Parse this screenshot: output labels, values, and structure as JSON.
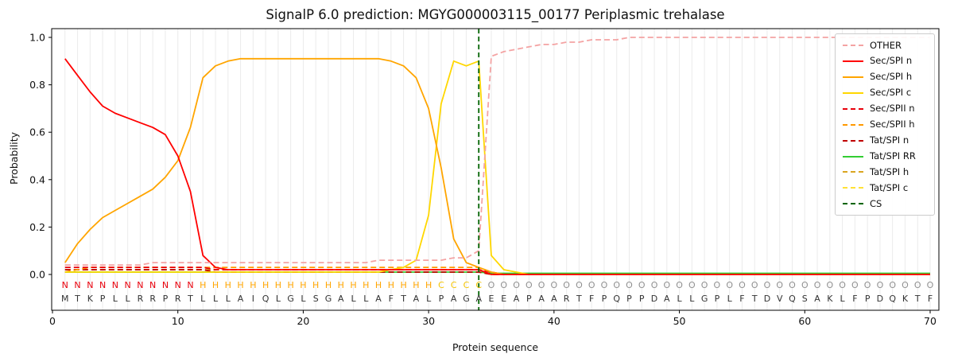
{
  "chart_data": {
    "type": "line",
    "title": "SignalP 6.0 prediction: MGYG000003115_00177 Periplasmic trehalase",
    "xlabel": "Protein sequence",
    "ylabel": "Probability",
    "xlim": [
      0,
      70
    ],
    "ylim": [
      0.0,
      1.0
    ],
    "x_ticks": [
      0,
      10,
      20,
      30,
      40,
      50,
      60,
      70
    ],
    "y_ticks": [
      "0.0",
      "0.2",
      "0.4",
      "0.6",
      "0.8",
      "1.0"
    ],
    "grid": "vertical-light-gray-per-residue",
    "legend_position": "upper right",
    "cs_position": 34,
    "cs_label": "CS",
    "cs_color": "#006400",
    "sequence": "MTKPLLRRPRTLLLAIQLGLSGALLAFTALPAGAEEAPAARTFPQPPDALLGPLFTDVQSAKLFPDQKTF",
    "regions": "NNNNNNNNNNNHHHHHHHHHHHHHHHHHHHCCCCOOOOOOOOOOOOOOOOOOOOOOOOOOOOOOOOOOOO",
    "region_colors": {
      "N": "#e8000b",
      "H": "#ffa500",
      "C": "#f5c400",
      "O": "#909090"
    },
    "sequence_color": "#333333",
    "series": [
      {
        "name": "OTHER",
        "color": "#f4a3a3",
        "dash": true,
        "values": [
          0.04,
          0.04,
          0.04,
          0.04,
          0.04,
          0.04,
          0.04,
          0.05,
          0.05,
          0.05,
          0.05,
          0.05,
          0.05,
          0.05,
          0.05,
          0.05,
          0.05,
          0.05,
          0.05,
          0.05,
          0.05,
          0.05,
          0.05,
          0.05,
          0.05,
          0.06,
          0.06,
          0.06,
          0.06,
          0.06,
          0.06,
          0.07,
          0.07,
          0.1,
          0.92,
          0.94,
          0.95,
          0.96,
          0.97,
          0.97,
          0.98,
          0.98,
          0.99,
          0.99,
          0.99,
          1.0,
          1.0,
          1.0,
          1.0,
          1.0,
          1.0,
          1.0,
          1.0,
          1.0,
          1.0,
          1.0,
          1.0,
          1.0,
          1.0,
          1.0,
          1.0,
          1.0,
          1.0,
          1.0,
          1.0,
          1.0,
          1.0,
          1.0,
          1.0,
          1.0
        ]
      },
      {
        "name": "Sec/SPI n",
        "color": "#ff0000",
        "dash": false,
        "values": [
          0.91,
          0.84,
          0.77,
          0.71,
          0.68,
          0.66,
          0.64,
          0.62,
          0.59,
          0.5,
          0.35,
          0.08,
          0.03,
          0.02,
          0.02,
          0.02,
          0.02,
          0.02,
          0.02,
          0.02,
          0.02,
          0.02,
          0.02,
          0.02,
          0.02,
          0.02,
          0.02,
          0.02,
          0.02,
          0.02,
          0.02,
          0.02,
          0.02,
          0.02,
          0,
          0,
          0,
          0,
          0,
          0,
          0,
          0,
          0,
          0,
          0,
          0,
          0,
          0,
          0,
          0,
          0,
          0,
          0,
          0,
          0,
          0,
          0,
          0,
          0,
          0,
          0,
          0,
          0,
          0,
          0,
          0,
          0,
          0,
          0,
          0
        ]
      },
      {
        "name": "Sec/SPI h",
        "color": "#ffa500",
        "dash": false,
        "values": [
          0.05,
          0.13,
          0.19,
          0.24,
          0.27,
          0.3,
          0.33,
          0.36,
          0.41,
          0.48,
          0.62,
          0.83,
          0.88,
          0.9,
          0.91,
          0.91,
          0.91,
          0.91,
          0.91,
          0.91,
          0.91,
          0.91,
          0.91,
          0.91,
          0.91,
          0.91,
          0.9,
          0.88,
          0.83,
          0.7,
          0.45,
          0.15,
          0.05,
          0.03,
          0.01,
          0,
          0,
          0,
          0,
          0,
          0,
          0,
          0,
          0,
          0,
          0,
          0,
          0,
          0,
          0,
          0,
          0,
          0,
          0,
          0,
          0,
          0,
          0,
          0,
          0,
          0,
          0,
          0,
          0,
          0,
          0,
          0,
          0,
          0,
          0
        ]
      },
      {
        "name": "Sec/SPI c",
        "color": "#ffd700",
        "dash": false,
        "values": [
          0.01,
          0.01,
          0.01,
          0.01,
          0.01,
          0.01,
          0.01,
          0.01,
          0.01,
          0.01,
          0.01,
          0.01,
          0.01,
          0.01,
          0.01,
          0.01,
          0.01,
          0.01,
          0.01,
          0.01,
          0.01,
          0.01,
          0.01,
          0.01,
          0.01,
          0.01,
          0.02,
          0.03,
          0.06,
          0.25,
          0.72,
          0.9,
          0.88,
          0.9,
          0.08,
          0.02,
          0.01,
          0,
          0,
          0,
          0,
          0,
          0,
          0,
          0,
          0,
          0,
          0,
          0,
          0,
          0,
          0,
          0,
          0,
          0,
          0,
          0,
          0,
          0,
          0,
          0,
          0,
          0,
          0,
          0,
          0,
          0,
          0,
          0,
          0
        ]
      },
      {
        "name": "Sec/SPII n",
        "color": "#e8000b",
        "dash": true,
        "values": [
          0.03,
          0.03,
          0.03,
          0.03,
          0.03,
          0.03,
          0.03,
          0.03,
          0.03,
          0.03,
          0.03,
          0.03,
          0.02,
          0.02,
          0.02,
          0.02,
          0.02,
          0.02,
          0.02,
          0.02,
          0.02,
          0.02,
          0.02,
          0.02,
          0.02,
          0.02,
          0.02,
          0.02,
          0.02,
          0.02,
          0.02,
          0.02,
          0.02,
          0.02,
          0.01,
          0,
          0,
          0,
          0,
          0,
          0,
          0,
          0,
          0,
          0,
          0,
          0,
          0,
          0,
          0,
          0,
          0,
          0,
          0,
          0,
          0,
          0,
          0,
          0,
          0,
          0,
          0,
          0,
          0,
          0,
          0,
          0,
          0,
          0,
          0
        ]
      },
      {
        "name": "Sec/SPII h",
        "color": "#ff9900",
        "dash": true,
        "values": [
          0.01,
          0.02,
          0.03,
          0.03,
          0.03,
          0.03,
          0.03,
          0.03,
          0.03,
          0.03,
          0.03,
          0.03,
          0.03,
          0.03,
          0.03,
          0.03,
          0.03,
          0.03,
          0.03,
          0.03,
          0.03,
          0.03,
          0.03,
          0.03,
          0.03,
          0.03,
          0.03,
          0.03,
          0.03,
          0.03,
          0.03,
          0.03,
          0.03,
          0.03,
          0.01,
          0,
          0,
          0,
          0,
          0,
          0,
          0,
          0,
          0,
          0,
          0,
          0,
          0,
          0,
          0,
          0,
          0,
          0,
          0,
          0,
          0,
          0,
          0,
          0,
          0,
          0,
          0,
          0,
          0,
          0,
          0,
          0,
          0,
          0,
          0
        ]
      },
      {
        "name": "Tat/SPI n",
        "color": "#c00000",
        "dash": true,
        "values": [
          0.02,
          0.02,
          0.02,
          0.02,
          0.02,
          0.02,
          0.02,
          0.02,
          0.02,
          0.02,
          0.02,
          0.02,
          0.01,
          0.01,
          0.01,
          0.01,
          0.01,
          0.01,
          0.01,
          0.01,
          0.01,
          0.01,
          0.01,
          0.01,
          0.01,
          0.01,
          0.01,
          0.01,
          0.01,
          0.01,
          0.01,
          0.01,
          0.01,
          0.01,
          0,
          0,
          0,
          0,
          0,
          0,
          0,
          0,
          0,
          0,
          0,
          0,
          0,
          0,
          0,
          0,
          0,
          0,
          0,
          0,
          0,
          0,
          0,
          0,
          0,
          0,
          0,
          0,
          0,
          0,
          0,
          0,
          0,
          0,
          0,
          0
        ]
      },
      {
        "name": "Tat/SPI RR",
        "color": "#32cd32",
        "dash": false,
        "values": [
          0.01,
          0.01,
          0.01,
          0.01,
          0.01,
          0.01,
          0.01,
          0.01,
          0.01,
          0.01,
          0.01,
          0.01,
          0.01,
          0.01,
          0.01,
          0.01,
          0.01,
          0.01,
          0.01,
          0.01,
          0.01,
          0.01,
          0.01,
          0.01,
          0.01,
          0.01,
          0.01,
          0.01,
          0.01,
          0.01,
          0.01,
          0.01,
          0.01,
          0.01,
          0.005,
          0.005,
          0.005,
          0.005,
          0.005,
          0.005,
          0.005,
          0.005,
          0.005,
          0.005,
          0.005,
          0.005,
          0.005,
          0.005,
          0.005,
          0.005,
          0.005,
          0.005,
          0.005,
          0.005,
          0.005,
          0.005,
          0.005,
          0.005,
          0.005,
          0.005,
          0.005,
          0.005,
          0.005,
          0.005,
          0.005,
          0.005,
          0.005,
          0.005,
          0.005,
          0.005
        ]
      },
      {
        "name": "Tat/SPI h",
        "color": "#daa520",
        "dash": true,
        "values": [
          0.02,
          0.02,
          0.02,
          0.02,
          0.02,
          0.02,
          0.02,
          0.02,
          0.02,
          0.02,
          0.02,
          0.02,
          0.02,
          0.02,
          0.02,
          0.02,
          0.02,
          0.02,
          0.02,
          0.02,
          0.02,
          0.02,
          0.02,
          0.02,
          0.02,
          0.02,
          0.02,
          0.02,
          0.02,
          0.02,
          0.02,
          0.02,
          0.02,
          0.02,
          0,
          0,
          0,
          0,
          0,
          0,
          0,
          0,
          0,
          0,
          0,
          0,
          0,
          0,
          0,
          0,
          0,
          0,
          0,
          0,
          0,
          0,
          0,
          0,
          0,
          0,
          0,
          0,
          0,
          0,
          0,
          0,
          0,
          0,
          0,
          0
        ]
      },
      {
        "name": "Tat/SPI c",
        "color": "#ffe135",
        "dash": true,
        "values": [
          0.01,
          0.01,
          0.01,
          0.01,
          0.01,
          0.01,
          0.01,
          0.01,
          0.01,
          0.01,
          0.01,
          0.01,
          0.01,
          0.01,
          0.01,
          0.01,
          0.01,
          0.01,
          0.01,
          0.01,
          0.01,
          0.01,
          0.01,
          0.01,
          0.01,
          0.01,
          0.01,
          0.01,
          0.01,
          0.01,
          0.01,
          0.01,
          0.01,
          0.01,
          0,
          0,
          0,
          0,
          0,
          0,
          0,
          0,
          0,
          0,
          0,
          0,
          0,
          0,
          0,
          0,
          0,
          0,
          0,
          0,
          0,
          0,
          0,
          0,
          0,
          0,
          0,
          0,
          0,
          0,
          0,
          0,
          0,
          0,
          0,
          0
        ]
      }
    ]
  }
}
